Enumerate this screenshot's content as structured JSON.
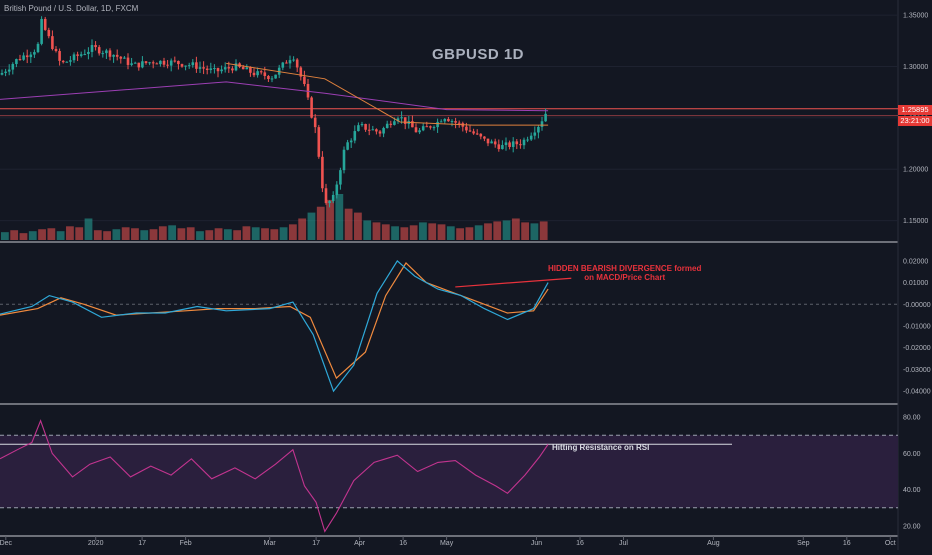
{
  "header": {
    "symbol_title": "British Pound / U.S. Dollar, 1D, FXCM",
    "watermark": "GBPUSD 1D"
  },
  "price_tags": {
    "last_price": "1.25895",
    "countdown": "23:21:00"
  },
  "annotations": {
    "macd_divergence_line1": "HIDDEN BEARISH DIVERGENCE formed",
    "macd_divergence_line2": "on MACD/Price Chart",
    "rsi_note": "Hitting Resistance on RSI"
  },
  "colors": {
    "background": "#131722",
    "up_candle": "#26a69a",
    "down_candle": "#ef5350",
    "annotation_red": "#e8323c",
    "rsi_line": "#c2348f",
    "rsi_band": "#2a1f3d",
    "macd_line": "#2fa8d8",
    "signal_line": "#f08a3e"
  },
  "chart_data": [
    {
      "type": "candlestick",
      "panel": "price",
      "title": "GBPUSD 1D",
      "x_tick_labels": [
        "Dec",
        "2020",
        "17",
        "Feb",
        "Mar",
        "17",
        "Apr",
        "16",
        "May",
        "Jun",
        "16",
        "Jul",
        "Aug",
        "Sep",
        "16",
        "Oct"
      ],
      "y_tick_labels": [
        "1.35000",
        "1.30000",
        "1.25000",
        "1.20000",
        "1.15000"
      ],
      "ylim": [
        1.135,
        1.355
      ],
      "close_path": [
        [
          "2019-11-29",
          1.292
        ],
        [
          "2019-12-05",
          1.307
        ],
        [
          "2019-12-12",
          1.318
        ],
        [
          "2019-12-13",
          1.345
        ],
        [
          "2019-12-20",
          1.302
        ],
        [
          "2019-12-31",
          1.318
        ],
        [
          "2020-01-07",
          1.312
        ],
        [
          "2020-01-14",
          1.301
        ],
        [
          "2020-01-21",
          1.305
        ],
        [
          "2020-01-28",
          1.304
        ],
        [
          "2020-02-04",
          1.301
        ],
        [
          "2020-02-11",
          1.295
        ],
        [
          "2020-02-18",
          1.3
        ],
        [
          "2020-02-25",
          1.293
        ],
        [
          "2020-03-02",
          1.29
        ],
        [
          "2020-03-09",
          1.312
        ],
        [
          "2020-03-13",
          1.28
        ],
        [
          "2020-03-17",
          1.236
        ],
        [
          "2020-03-20",
          1.164
        ],
        [
          "2020-03-23",
          1.172
        ],
        [
          "2020-03-27",
          1.222
        ],
        [
          "2020-04-01",
          1.242
        ],
        [
          "2020-04-08",
          1.236
        ],
        [
          "2020-04-14",
          1.253
        ],
        [
          "2020-04-21",
          1.236
        ],
        [
          "2020-04-28",
          1.246
        ],
        [
          "2020-04-30",
          1.252
        ],
        [
          "2020-05-07",
          1.241
        ],
        [
          "2020-05-14",
          1.228
        ],
        [
          "2020-05-20",
          1.222
        ],
        [
          "2020-05-27",
          1.226
        ],
        [
          "2020-06-02",
          1.244
        ],
        [
          "2020-06-05",
          1.259
        ]
      ],
      "sma_50": [
        [
          "2020-02-15",
          1.303
        ],
        [
          "2020-03-20",
          1.288
        ],
        [
          "2020-04-15",
          1.246
        ],
        [
          "2020-05-10",
          1.243
        ],
        [
          "2020-06-05",
          1.243
        ]
      ],
      "sma_200": [
        [
          "2019-11-29",
          1.268
        ],
        [
          "2020-02-15",
          1.285
        ],
        [
          "2020-03-20",
          1.274
        ],
        [
          "2020-05-01",
          1.258
        ],
        [
          "2020-06-05",
          1.257
        ]
      ],
      "horizontal_lines": [
        1.2589,
        1.2522
      ]
    },
    {
      "type": "bar",
      "panel": "volume",
      "series": [
        {
          "values": [
            8,
            10,
            7,
            9,
            11,
            12,
            9,
            14,
            13,
            22,
            10,
            9,
            11,
            13,
            12,
            10,
            11,
            14,
            15,
            12,
            13,
            9,
            10,
            12,
            11,
            10,
            14,
            13,
            12,
            11,
            13,
            16,
            22,
            28,
            34,
            41,
            47,
            32,
            28,
            20,
            18,
            16,
            14,
            13,
            15,
            18,
            17,
            16,
            14,
            12,
            13,
            15,
            17,
            19,
            20,
            22,
            18,
            17,
            19
          ]
        }
      ]
    },
    {
      "type": "line",
      "panel": "macd",
      "y_tick_labels": [
        "0.02000",
        "0.01000",
        "-0.00000",
        "-0.01000",
        "-0.02000",
        "-0.03000",
        "-0.04000"
      ],
      "ylim": [
        -0.045,
        0.025
      ],
      "series": [
        {
          "values": [
            [
              "2019-11-29",
              -0.0045
            ],
            [
              "2019-12-10",
              -0.001
            ],
            [
              "2019-12-16",
              0.004
            ],
            [
              "2019-12-24",
              0.001
            ],
            [
              "2020-01-03",
              -0.006
            ],
            [
              "2020-01-15",
              -0.004
            ],
            [
              "2020-01-25",
              -0.004
            ],
            [
              "2020-02-05",
              -0.001
            ],
            [
              "2020-02-15",
              -0.003
            ],
            [
              "2020-03-01",
              -0.002
            ],
            [
              "2020-03-09",
              0.001
            ],
            [
              "2020-03-16",
              -0.014
            ],
            [
              "2020-03-23",
              -0.04
            ],
            [
              "2020-03-30",
              -0.028
            ],
            [
              "2020-04-07",
              0.005
            ],
            [
              "2020-04-14",
              0.02
            ],
            [
              "2020-04-20",
              0.013
            ],
            [
              "2020-04-28",
              0.007
            ],
            [
              "2020-05-06",
              0.004
            ],
            [
              "2020-05-14",
              -0.002
            ],
            [
              "2020-05-22",
              -0.007
            ],
            [
              "2020-05-31",
              -0.002
            ],
            [
              "2020-06-05",
              0.01
            ]
          ]
        },
        {
          "values": [
            [
              "2019-11-29",
              -0.005
            ],
            [
              "2019-12-12",
              -0.002
            ],
            [
              "2019-12-20",
              0.003
            ],
            [
              "2019-12-28",
              0.0
            ],
            [
              "2020-01-08",
              -0.005
            ],
            [
              "2020-01-20",
              -0.004
            ],
            [
              "2020-02-01",
              -0.003
            ],
            [
              "2020-02-12",
              -0.002
            ],
            [
              "2020-02-25",
              -0.002
            ],
            [
              "2020-03-08",
              -0.001
            ],
            [
              "2020-03-15",
              -0.006
            ],
            [
              "2020-03-24",
              -0.034
            ],
            [
              "2020-04-03",
              -0.022
            ],
            [
              "2020-04-10",
              0.004
            ],
            [
              "2020-04-17",
              0.019
            ],
            [
              "2020-04-24",
              0.01
            ],
            [
              "2020-05-02",
              0.006
            ],
            [
              "2020-05-12",
              0.001
            ],
            [
              "2020-05-22",
              -0.004
            ],
            [
              "2020-05-31",
              -0.003
            ],
            [
              "2020-06-05",
              0.007
            ]
          ]
        }
      ]
    },
    {
      "type": "line",
      "panel": "rsi",
      "y_tick_labels": [
        "80.00",
        "60.00",
        "40.00",
        "20.00"
      ],
      "ylim": [
        15,
        85
      ],
      "series": [
        {
          "values": [
            [
              "2019-11-29",
              57
            ],
            [
              "2019-12-05",
              62
            ],
            [
              "2019-12-10",
              66
            ],
            [
              "2019-12-13",
              78
            ],
            [
              "2019-12-17",
              60
            ],
            [
              "2019-12-24",
              47
            ],
            [
              "2019-12-30",
              54
            ],
            [
              "2020-01-06",
              58
            ],
            [
              "2020-01-13",
              47
            ],
            [
              "2020-01-20",
              53
            ],
            [
              "2020-01-27",
              48
            ],
            [
              "2020-02-03",
              57
            ],
            [
              "2020-02-10",
              46
            ],
            [
              "2020-02-18",
              52
            ],
            [
              "2020-02-25",
              46
            ],
            [
              "2020-03-03",
              54
            ],
            [
              "2020-03-09",
              62
            ],
            [
              "2020-03-13",
              42
            ],
            [
              "2020-03-17",
              33
            ],
            [
              "2020-03-20",
              17
            ],
            [
              "2020-03-24",
              27
            ],
            [
              "2020-03-30",
              45
            ],
            [
              "2020-04-06",
              55
            ],
            [
              "2020-04-14",
              59
            ],
            [
              "2020-04-21",
              50
            ],
            [
              "2020-04-28",
              55
            ],
            [
              "2020-05-04",
              56
            ],
            [
              "2020-05-11",
              48
            ],
            [
              "2020-05-18",
              42
            ],
            [
              "2020-05-22",
              38
            ],
            [
              "2020-05-28",
              48
            ],
            [
              "2020-06-02",
              58
            ],
            [
              "2020-06-05",
              65
            ]
          ]
        }
      ],
      "bands": [
        70,
        30
      ],
      "resistance_level": 65
    }
  ]
}
